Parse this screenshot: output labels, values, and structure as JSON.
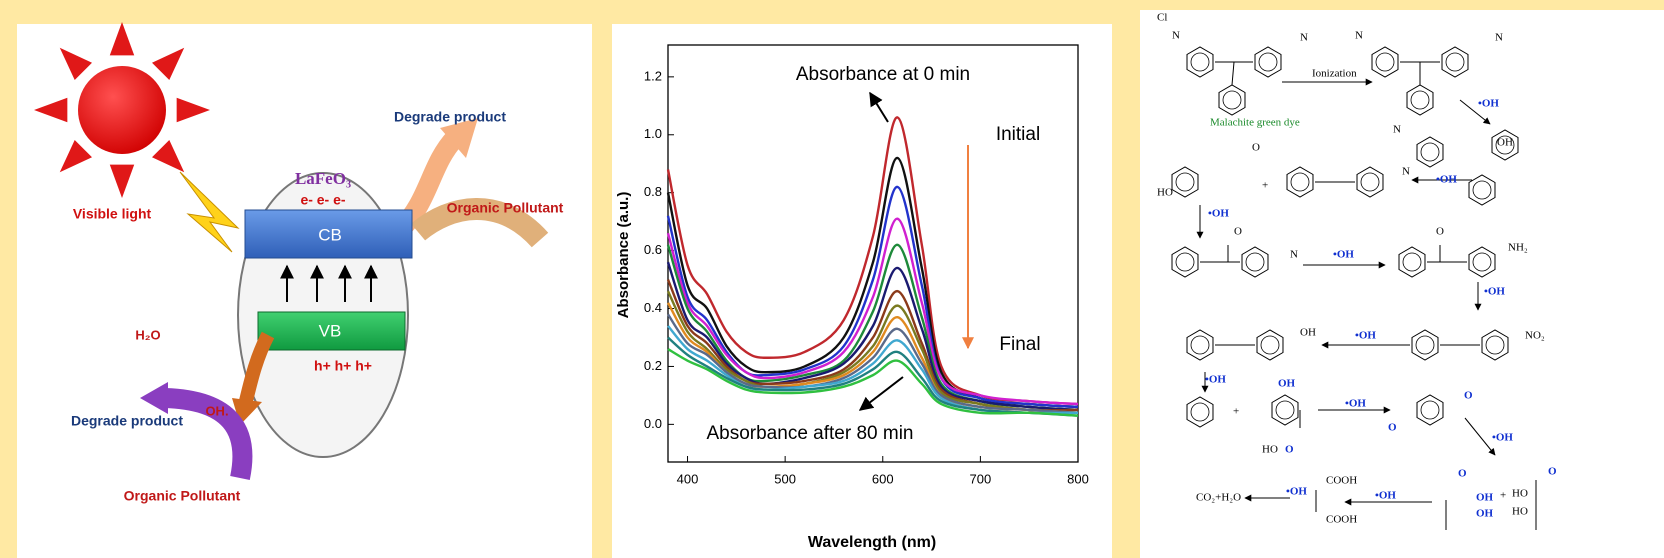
{
  "diagram": {
    "catalyst": "LaFeO₃",
    "electrons": "e- e- e-",
    "cb": "CB",
    "vb": "VB",
    "holes": "h+ h+ h+",
    "light": "Visible light",
    "top_product": "Degrade product",
    "top_pollutant": "Organic Pollutant",
    "water": "H₂O",
    "radical": "OH.",
    "bottom_product": "Degrade product",
    "bottom_pollutant": "Organic Pollutant"
  },
  "chart_data": {
    "type": "line",
    "x_label": "Wavelength (nm)",
    "y_label": "Absorbance (a.u.)",
    "annotations": [
      "Absorbance at 0 min",
      "Initial",
      "Final",
      "Absorbance after 80 min"
    ],
    "x": [
      380,
      400,
      420,
      440,
      460,
      480,
      520,
      560,
      590,
      615,
      640,
      660,
      700,
      750,
      800
    ],
    "xlim": [
      380,
      800
    ],
    "ylim": [
      -0.13,
      1.31
    ],
    "xticks": [
      400,
      500,
      600,
      700,
      800
    ],
    "yticks": [
      {
        "value": 0,
        "label": "0.0"
      },
      0.2,
      0.4,
      0.6,
      0.8,
      {
        "value": 1,
        "label": "1.0"
      },
      1.2
    ],
    "series": [
      {
        "color": "#c0282d",
        "values": [
          0.88,
          0.55,
          0.45,
          0.32,
          0.25,
          0.23,
          0.25,
          0.36,
          0.65,
          1.06,
          0.62,
          0.2,
          0.1,
          0.08,
          0.07
        ]
      },
      {
        "color": "#111111",
        "values": [
          0.8,
          0.48,
          0.4,
          0.27,
          0.2,
          0.18,
          0.2,
          0.3,
          0.56,
          0.92,
          0.54,
          0.18,
          0.09,
          0.07,
          0.06
        ]
      },
      {
        "color": "#2233cc",
        "values": [
          0.72,
          0.44,
          0.36,
          0.25,
          0.18,
          0.17,
          0.19,
          0.27,
          0.5,
          0.82,
          0.48,
          0.16,
          0.09,
          0.07,
          0.06
        ]
      },
      {
        "color": "#d020d0",
        "values": [
          0.66,
          0.42,
          0.34,
          0.24,
          0.18,
          0.16,
          0.18,
          0.25,
          0.44,
          0.71,
          0.42,
          0.16,
          0.1,
          0.08,
          0.07
        ]
      },
      {
        "color": "#1e8a3a",
        "values": [
          0.62,
          0.4,
          0.32,
          0.22,
          0.16,
          0.15,
          0.17,
          0.22,
          0.39,
          0.62,
          0.37,
          0.14,
          0.08,
          0.06,
          0.05
        ]
      },
      {
        "color": "#1a1a70",
        "values": [
          0.56,
          0.36,
          0.3,
          0.21,
          0.16,
          0.14,
          0.16,
          0.21,
          0.34,
          0.54,
          0.33,
          0.13,
          0.08,
          0.06,
          0.05
        ]
      },
      {
        "color": "#8b3a1a",
        "values": [
          0.5,
          0.34,
          0.28,
          0.2,
          0.15,
          0.14,
          0.15,
          0.19,
          0.3,
          0.46,
          0.28,
          0.12,
          0.07,
          0.05,
          0.05
        ]
      },
      {
        "color": "#7a7a20",
        "values": [
          0.46,
          0.32,
          0.26,
          0.19,
          0.15,
          0.13,
          0.14,
          0.18,
          0.27,
          0.41,
          0.26,
          0.11,
          0.07,
          0.05,
          0.04
        ]
      },
      {
        "color": "#e08a20",
        "values": [
          0.42,
          0.3,
          0.25,
          0.18,
          0.14,
          0.13,
          0.14,
          0.17,
          0.25,
          0.37,
          0.23,
          0.1,
          0.06,
          0.05,
          0.04
        ]
      },
      {
        "color": "#5a6a8a",
        "values": [
          0.38,
          0.28,
          0.24,
          0.18,
          0.14,
          0.13,
          0.13,
          0.16,
          0.23,
          0.33,
          0.21,
          0.1,
          0.06,
          0.05,
          0.04
        ]
      },
      {
        "color": "#40a8d0",
        "values": [
          0.34,
          0.26,
          0.22,
          0.17,
          0.13,
          0.12,
          0.13,
          0.15,
          0.21,
          0.29,
          0.19,
          0.09,
          0.05,
          0.04,
          0.04
        ]
      },
      {
        "color": "#208080",
        "values": [
          0.3,
          0.24,
          0.2,
          0.16,
          0.13,
          0.12,
          0.12,
          0.14,
          0.19,
          0.25,
          0.16,
          0.08,
          0.05,
          0.04,
          0.03
        ]
      },
      {
        "color": "#30c040",
        "values": [
          0.26,
          0.22,
          0.19,
          0.15,
          0.12,
          0.11,
          0.11,
          0.13,
          0.17,
          0.22,
          0.14,
          0.07,
          0.04,
          0.04,
          0.03
        ]
      }
    ]
  },
  "scheme": {
    "labels": [
      "Cl",
      "N",
      "N",
      "N",
      "N",
      "Ionization",
      "Malachite green dye",
      "•OH",
      "OH",
      "N",
      "HO",
      "+",
      "N",
      "•OH",
      "•OH",
      "N",
      "•OH",
      "NH₂",
      "•OH",
      "OH",
      "•OH",
      "NO₂",
      "•OH",
      "+",
      "OH",
      "HO",
      "O",
      "•OH",
      "O",
      "O",
      "•OH",
      "COOH",
      "COOH",
      "CO₂+H₂O",
      "•OH",
      "•OH",
      "O",
      "OH",
      "OH",
      "+",
      "HO",
      "HO",
      "O",
      "O",
      "O",
      "O"
    ]
  }
}
